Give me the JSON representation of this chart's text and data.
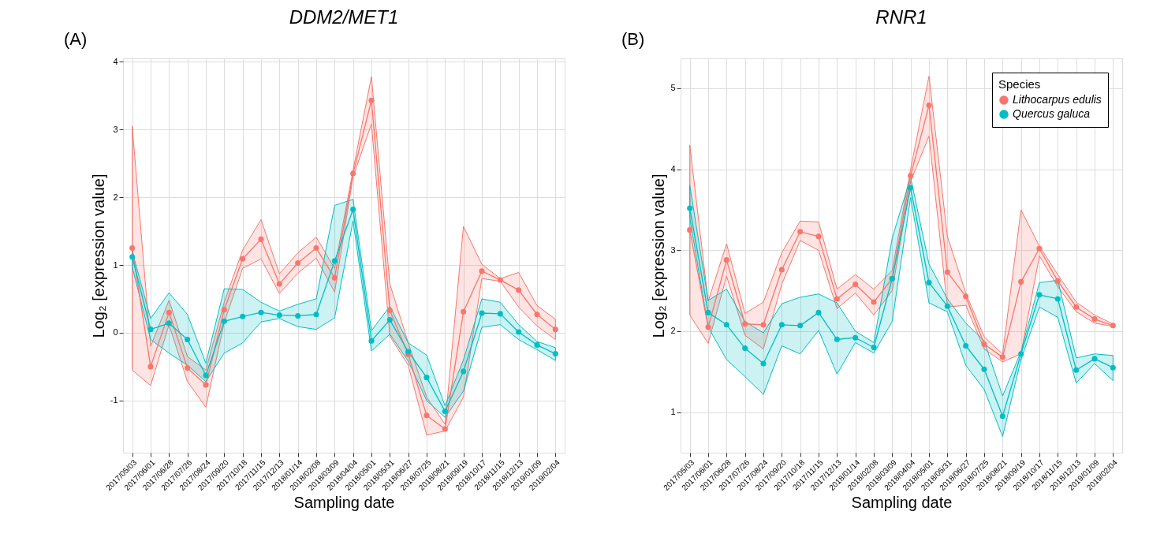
{
  "chart_data": [
    {
      "type": "line",
      "title": "DDM2/MET1",
      "xlabel": "Sampling date",
      "ylabel": "Log₂ [expression value]",
      "annotations": [
        "(A)"
      ],
      "categories": [
        "2017/05/03",
        "2017/06/01",
        "2017/06/28",
        "2017/07/26",
        "2017/08/24",
        "2017/09/20",
        "2017/10/18",
        "2017/11/15",
        "2017/12/13",
        "2018/01/14",
        "2018/02/08",
        "2018/03/09",
        "2018/04/04",
        "2018/05/01",
        "2018/05/31",
        "2018/06/27",
        "2018/07/25",
        "2018/08/21",
        "2018/09/19",
        "2018/10/17",
        "2018/11/15",
        "2018/12/13",
        "2019/01/09",
        "2019/02/04"
      ],
      "series": [
        {
          "color": "#f8766d",
          "values": [
            1.25,
            -0.5,
            0.3,
            -0.52,
            -0.77,
            0.34,
            1.09,
            1.38,
            0.72,
            1.03,
            1.25,
            0.81,
            2.35,
            3.43,
            0.33,
            -0.32,
            -1.22,
            -1.42,
            0.31,
            0.91,
            0.78,
            0.63,
            0.27,
            0.05
          ],
          "upper": [
            3.05,
            -0.2,
            0.48,
            -0.35,
            -0.55,
            0.45,
            1.22,
            1.67,
            0.87,
            1.18,
            1.41,
            0.95,
            2.4,
            3.78,
            0.72,
            -0.15,
            -0.95,
            -1.35,
            1.57,
            1.01,
            0.8,
            0.89,
            0.4,
            0.2
          ],
          "lower": [
            -0.55,
            -0.78,
            0.12,
            -0.72,
            -1.1,
            0.15,
            0.95,
            1.09,
            0.58,
            0.88,
            1.1,
            0.6,
            2.3,
            3.08,
            -0.05,
            -0.48,
            -1.51,
            -1.45,
            -0.95,
            0.8,
            0.76,
            0.38,
            0.1,
            -0.1
          ]
        },
        {
          "color": "#00bfc4",
          "values": [
            1.12,
            0.05,
            0.14,
            -0.1,
            -0.63,
            0.17,
            0.24,
            0.3,
            0.26,
            0.25,
            0.27,
            1.06,
            1.82,
            -0.12,
            0.19,
            -0.28,
            -0.66,
            -1.16,
            -0.57,
            0.29,
            0.28,
            0.01,
            -0.18,
            -0.31
          ],
          "upper": [
            1.2,
            0.21,
            0.59,
            0.27,
            -0.45,
            0.65,
            0.64,
            0.45,
            0.32,
            0.42,
            0.5,
            1.88,
            1.97,
            0.03,
            0.39,
            -0.15,
            -0.33,
            -1.08,
            -0.4,
            0.5,
            0.45,
            0.12,
            -0.13,
            -0.22
          ],
          "lower": [
            0.97,
            -0.1,
            -0.3,
            -0.48,
            -0.72,
            -0.3,
            -0.15,
            0.16,
            0.21,
            0.09,
            0.05,
            0.22,
            1.65,
            -0.27,
            -0.02,
            -0.42,
            -1.0,
            -1.25,
            -0.86,
            0.08,
            0.12,
            -0.1,
            -0.25,
            -0.41
          ]
        }
      ],
      "ylim": [
        -1.77,
        4.05
      ],
      "yticks": [
        -1,
        0,
        1,
        2,
        3,
        4
      ],
      "grid": true,
      "marker": "circle"
    },
    {
      "type": "line",
      "title": "RNR1",
      "xlabel": "Sampling date",
      "ylabel": "Log₂ [expression value]",
      "annotations": [
        "(B)"
      ],
      "legend_title": "Species",
      "categories": [
        "2017/05/03",
        "2017/06/01",
        "2017/06/28",
        "2017/07/26",
        "2017/08/24",
        "2017/09/20",
        "2017/10/18",
        "2017/11/15",
        "2017/12/13",
        "2018/01/14",
        "2018/02/08",
        "2018/03/09",
        "2018/04/04",
        "2018/05/01",
        "2018/05/31",
        "2018/06/27",
        "2018/07/25",
        "2018/08/21",
        "2018/09/19",
        "2018/10/17",
        "2018/11/15",
        "2018/12/13",
        "2019/01/09",
        "2019/02/04"
      ],
      "series": [
        {
          "name": "Lithocarpus edulis",
          "color": "#f8766d",
          "values": [
            3.25,
            2.05,
            2.88,
            2.09,
            2.08,
            2.76,
            3.23,
            3.17,
            2.4,
            2.58,
            2.36,
            2.65,
            3.92,
            4.79,
            2.73,
            2.43,
            1.84,
            1.68,
            2.61,
            3.02,
            2.62,
            2.3,
            2.15,
            2.07
          ],
          "upper": [
            4.3,
            2.37,
            3.08,
            2.22,
            2.36,
            2.97,
            3.36,
            3.35,
            2.52,
            2.7,
            2.52,
            2.75,
            4.0,
            5.15,
            3.17,
            2.47,
            1.93,
            1.72,
            3.5,
            3.05,
            2.7,
            2.36,
            2.2,
            2.09
          ],
          "lower": [
            2.2,
            1.85,
            2.68,
            1.95,
            1.78,
            2.58,
            3.12,
            3.0,
            2.28,
            2.47,
            2.2,
            2.5,
            3.85,
            4.41,
            2.3,
            2.32,
            1.78,
            1.62,
            1.72,
            2.93,
            2.55,
            2.24,
            2.1,
            2.06
          ]
        },
        {
          "name": "Quercus galuca",
          "color": "#00bfc4",
          "values": [
            3.52,
            2.23,
            2.08,
            1.79,
            1.6,
            2.08,
            2.07,
            2.23,
            1.9,
            1.92,
            1.8,
            2.65,
            3.77,
            2.6,
            2.31,
            1.82,
            1.53,
            0.95,
            1.72,
            2.45,
            2.4,
            1.52,
            1.66,
            1.55
          ],
          "upper": [
            3.8,
            2.38,
            2.52,
            2.12,
            1.98,
            2.34,
            2.42,
            2.46,
            2.35,
            2.0,
            1.86,
            3.15,
            3.9,
            2.83,
            2.4,
            2.1,
            1.88,
            1.2,
            1.75,
            2.6,
            2.63,
            1.67,
            1.72,
            1.7
          ],
          "lower": [
            3.4,
            2.05,
            1.65,
            1.44,
            1.22,
            1.82,
            1.72,
            2.01,
            1.47,
            1.86,
            1.73,
            2.12,
            3.65,
            2.35,
            2.24,
            1.58,
            1.28,
            0.7,
            1.65,
            2.3,
            2.17,
            1.36,
            1.6,
            1.39
          ]
        }
      ],
      "ylim": [
        0.5,
        5.37
      ],
      "yticks": [
        1,
        2,
        3,
        4,
        5
      ],
      "grid": true,
      "marker": "circle",
      "legend": "top right"
    }
  ]
}
